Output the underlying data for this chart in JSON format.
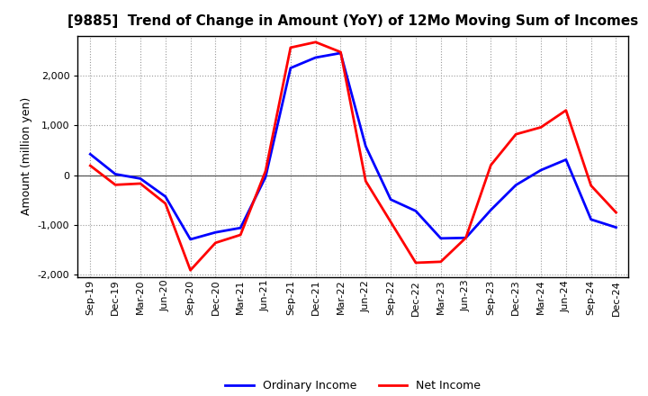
{
  "title": "[9885]  Trend of Change in Amount (YoY) of 12Mo Moving Sum of Incomes",
  "ylabel": "Amount (million yen)",
  "x_labels": [
    "Sep-19",
    "Dec-19",
    "Mar-20",
    "Jun-20",
    "Sep-20",
    "Dec-20",
    "Mar-21",
    "Jun-21",
    "Sep-21",
    "Dec-21",
    "Mar-22",
    "Jun-22",
    "Sep-22",
    "Dec-22",
    "Mar-23",
    "Jun-23",
    "Sep-23",
    "Dec-23",
    "Mar-24",
    "Jun-24",
    "Sep-24",
    "Dec-24"
  ],
  "ordinary_income": [
    420,
    20,
    -70,
    -430,
    -1290,
    -1150,
    -1060,
    -40,
    2150,
    2360,
    2450,
    580,
    -490,
    -720,
    -1270,
    -1260,
    -700,
    -200,
    100,
    310,
    -890,
    -1050
  ],
  "net_income": [
    190,
    -195,
    -170,
    -570,
    -1910,
    -1360,
    -1200,
    80,
    2560,
    2670,
    2470,
    -120,
    -940,
    -1760,
    -1740,
    -1260,
    200,
    820,
    960,
    1300,
    -210,
    -750
  ],
  "ordinary_color": "#0000ff",
  "net_color": "#ff0000",
  "ylim": [
    -2050,
    2800
  ],
  "yticks": [
    -2000,
    -1000,
    0,
    1000,
    2000
  ],
  "bg_color": "#ffffff",
  "grid_color": "#999999",
  "spine_color": "#000000",
  "zero_line_color": "#555555",
  "title_fontsize": 11,
  "ylabel_fontsize": 9,
  "tick_fontsize": 8,
  "legend_fontsize": 9,
  "linewidth": 2.0
}
